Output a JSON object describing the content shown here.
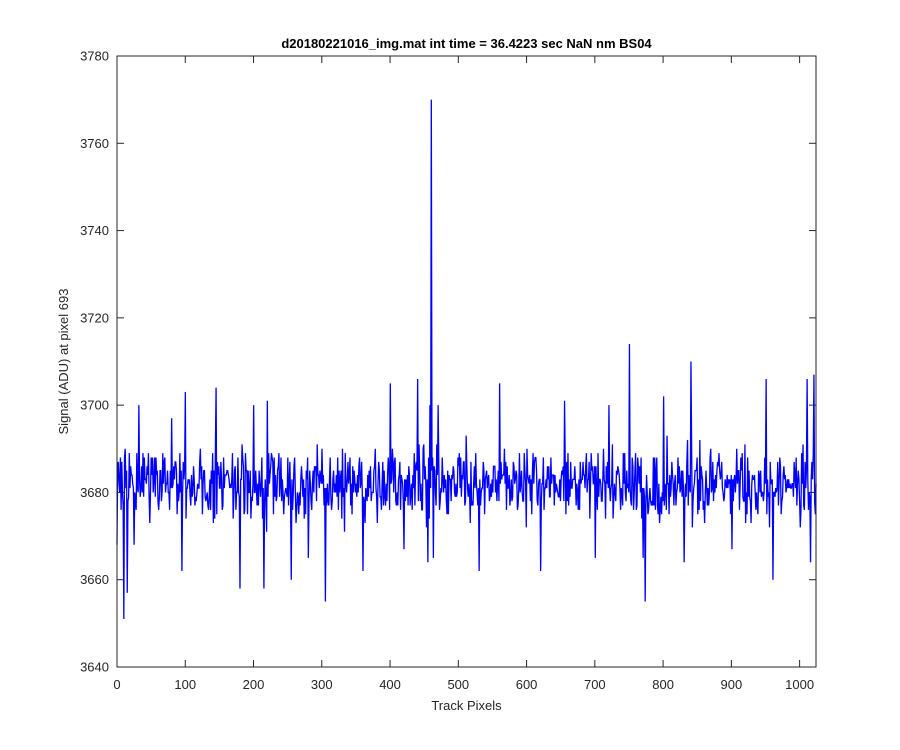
{
  "chart_data": {
    "type": "line",
    "title": "d20180221016_img.mat int time = 36.4223 sec  NaN nm BS04",
    "xlabel": "Track Pixels",
    "ylabel": "Signal (ADU) at pixel 693",
    "xlim": [
      0,
      1024
    ],
    "ylim": [
      3640,
      3780
    ],
    "xticks": [
      0,
      100,
      200,
      300,
      400,
      500,
      600,
      700,
      800,
      900,
      1000
    ],
    "yticks": [
      3640,
      3660,
      3680,
      3700,
      3720,
      3740,
      3760,
      3780
    ],
    "grid": false,
    "legend": "none",
    "series": [
      {
        "color": "#0000ff",
        "noise": {
          "n_points": 1024,
          "mean": 3682,
          "typical_min": 3660,
          "typical_max": 3705
        },
        "x": [
          0,
          5,
          10,
          12,
          15,
          20,
          25,
          32,
          50,
          80,
          95,
          100,
          145,
          180,
          200,
          215,
          220,
          255,
          280,
          300,
          305,
          330,
          360,
          400,
          420,
          440,
          455,
          458,
          460,
          463,
          470,
          500,
          530,
          560,
          600,
          620,
          655,
          700,
          720,
          750,
          770,
          773,
          800,
          830,
          840,
          900,
          950,
          960,
          1000,
          1010,
          1015,
          1020,
          1024
        ],
        "y": [
          3668,
          3688,
          3651,
          3690,
          3657,
          3686,
          3668,
          3700,
          3688,
          3697,
          3662,
          3703,
          3704,
          3658,
          3700,
          3658,
          3701,
          3660,
          3665,
          3690,
          3655,
          3690,
          3662,
          3705,
          3667,
          3706,
          3664,
          3700,
          3770,
          3665,
          3700,
          3686,
          3662,
          3705,
          3690,
          3662,
          3701,
          3665,
          3700,
          3714,
          3665,
          3655,
          3702,
          3664,
          3710,
          3667,
          3706,
          3660,
          3672,
          3706,
          3664,
          3707,
          3682
        ]
      }
    ]
  }
}
